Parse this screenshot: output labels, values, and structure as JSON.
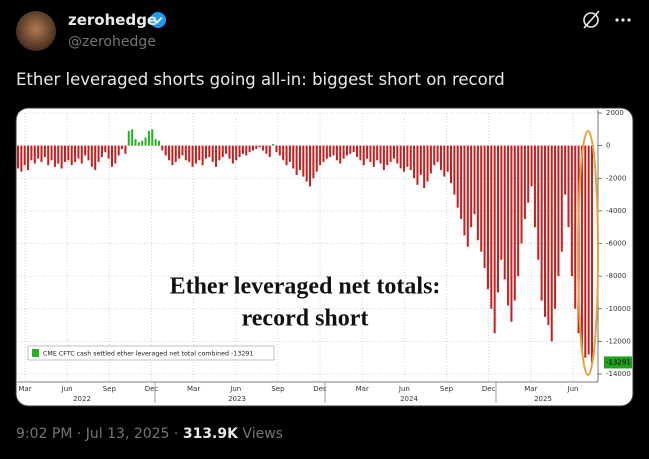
{
  "author": {
    "name": "zerohedge",
    "handle": "@zerohedge"
  },
  "tweet": {
    "text": "Ether leveraged shorts going all-in: biggest short on record"
  },
  "chart_data": {
    "type": "bar",
    "annotation": [
      "Ether leveraged net totals:",
      "record short"
    ],
    "legend": "CME CFTC cash settled ether leveraged net total combined -13291",
    "last_value": -13291,
    "color_positive": "#22b422",
    "color_negative": "#c81e1e",
    "grid": true,
    "ylim": [
      -14000,
      2000
    ],
    "yticks": [
      2000,
      0,
      -2000,
      -4000,
      -6000,
      -8000,
      -10000,
      -12000,
      -14000
    ],
    "xtick_labels": [
      "Mar",
      "Jun",
      "Sep",
      "Dec",
      "Mar",
      "Jun",
      "Sep",
      "Dec",
      "Mar",
      "Jun",
      "Sep",
      "Dec",
      "Mar",
      "Jun"
    ],
    "years": [
      "2022",
      "2023",
      "2024",
      "2025"
    ],
    "values": [
      -1400,
      -1600,
      -1200,
      -1500,
      -900,
      -1100,
      -800,
      -1000,
      -700,
      -1200,
      -900,
      -1300,
      -1100,
      -1400,
      -1000,
      -900,
      -1200,
      -1000,
      -800,
      -1100,
      -600,
      -900,
      -1300,
      -1500,
      -1000,
      -700,
      -400,
      -800,
      -1300,
      -1100,
      -600,
      -200,
      -500,
      900,
      1000,
      400,
      200,
      300,
      500,
      900,
      1000,
      400,
      300,
      -300,
      -600,
      -900,
      -1200,
      -1000,
      -800,
      -600,
      -900,
      -1000,
      -1300,
      -1100,
      -900,
      -1200,
      -800,
      -700,
      -1000,
      -1300,
      -900,
      -700,
      -500,
      -800,
      -1100,
      -900,
      -700,
      -500,
      -600,
      -400,
      -300,
      -200,
      -100,
      -300,
      -500,
      -700,
      100,
      -400,
      -600,
      -900,
      -1200,
      -1000,
      -1400,
      -1800,
      -1500,
      -1900,
      -2200,
      -2500,
      -2000,
      -1600,
      -1200,
      -1000,
      -800,
      -700,
      -600,
      -900,
      -1100,
      -800,
      -600,
      -500,
      -400,
      -700,
      -900,
      -1200,
      -800,
      -1000,
      -1300,
      -900,
      -1100,
      -1500,
      -1200,
      -1000,
      -800,
      -1100,
      -1400,
      -1600,
      -1300,
      -1500,
      -2000,
      -2400,
      -1800,
      -2600,
      -2200,
      -1700,
      -1200,
      -1000,
      -1500,
      -1900,
      -1600,
      -2300,
      -3000,
      -3800,
      -4500,
      -5500,
      -6200,
      -5000,
      -4200,
      -5800,
      -6500,
      -7500,
      -8800,
      -10000,
      -11500,
      -9000,
      -7000,
      -8200,
      -9800,
      -10800,
      -9500,
      -8000,
      -6000,
      -4500,
      -3500,
      -2500,
      -5000,
      -7000,
      -9500,
      -10500,
      -11000,
      -12000,
      -10000,
      -8000,
      -6500,
      -3000,
      -5000,
      -8000,
      -10000,
      -11500,
      -12500,
      -13000,
      -12800,
      -13291
    ]
  },
  "footer": {
    "time": "9:02 PM",
    "separator": "·",
    "date": "Jul 13, 2025",
    "views": "313.9K",
    "views_label": "Views"
  }
}
